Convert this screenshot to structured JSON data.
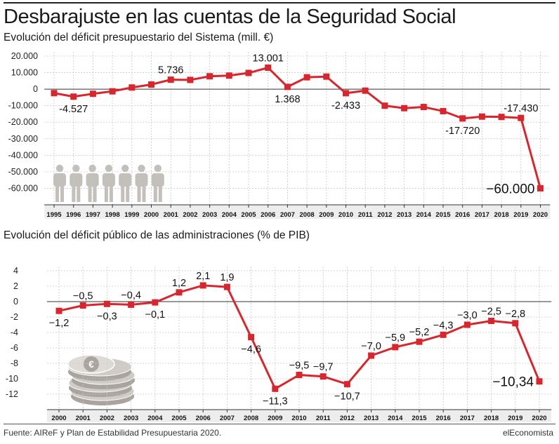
{
  "header": {
    "title": "Desbarajuste en las cuentas de la Seguridad Social"
  },
  "footer": {
    "source": "Fuente: AIReF y Plan de Estabilidad Presupuestaria 2020.",
    "brand": "elEconomista"
  },
  "colors": {
    "series": "#d7262d",
    "grid": "#c8c8c8",
    "axis_band": "#ededed",
    "icons": "#c3c0bc"
  },
  "decorations": {
    "chart1_icon": "people-icons",
    "chart2_icon": "coin-stack-icon"
  },
  "chart_data": [
    {
      "type": "line",
      "title": "Evolución del déficit presupuestario del Sistema (mill. €)",
      "xlabel": "",
      "ylabel": "",
      "x": [
        "1995",
        "1996",
        "1997",
        "1998",
        "1999",
        "2000",
        "2001",
        "2002",
        "2003",
        "2004",
        "2005",
        "2006",
        "2007",
        "2008",
        "2009",
        "2010",
        "2011",
        "2012",
        "2013",
        "2014",
        "2015",
        "2016",
        "2017",
        "2018",
        "2019",
        "2020"
      ],
      "values": [
        -2400,
        -4527,
        -2800,
        -1300,
        1000,
        2800,
        5736,
        5600,
        7800,
        8200,
        9800,
        13001,
        1368,
        7200,
        7600,
        -2433,
        -900,
        -10000,
        -11500,
        -10800,
        -13300,
        -17720,
        -16600,
        -16800,
        -17430,
        -60000
      ],
      "ylim": [
        -70000,
        20000
      ],
      "yticks": [
        20000,
        10000,
        0,
        -10000,
        -20000,
        -30000,
        -40000,
        -50000,
        -60000
      ],
      "ytick_labels": [
        "20.000",
        "10.000",
        "0",
        "-10.000",
        "-20.000",
        "-30.000",
        "-40.000",
        "-50.000",
        "-60.000"
      ],
      "grid": true,
      "data_labels": [
        {
          "index": 1,
          "text": "-4.527",
          "pos": "below"
        },
        {
          "index": 6,
          "text": "5.736",
          "pos": "above"
        },
        {
          "index": 11,
          "text": "13.001",
          "pos": "above"
        },
        {
          "index": 12,
          "text": "1.368",
          "pos": "below"
        },
        {
          "index": 15,
          "text": "-2.433",
          "pos": "below"
        },
        {
          "index": 21,
          "text": "-17.720",
          "pos": "below"
        },
        {
          "index": 24,
          "text": "-17.430",
          "pos": "above"
        },
        {
          "index": 25,
          "text": "−60.000",
          "pos": "left",
          "emphasis": true
        }
      ]
    },
    {
      "type": "line",
      "title": "Evolución del déficit público de las administraciones (% de PIB)",
      "xlabel": "",
      "ylabel": "",
      "x": [
        "2000",
        "2001",
        "2002",
        "2003",
        "2004",
        "2005",
        "2006",
        "2007",
        "2008",
        "2009",
        "2010",
        "2011",
        "2012",
        "2013",
        "2014",
        "2015",
        "2016",
        "2017",
        "2018",
        "2019",
        "2020"
      ],
      "values": [
        -1.2,
        -0.5,
        -0.3,
        -0.4,
        -0.1,
        1.2,
        2.1,
        1.9,
        -4.6,
        -11.3,
        -9.5,
        -9.7,
        -10.7,
        -7.0,
        -5.9,
        -5.2,
        -4.3,
        -3.0,
        -2.5,
        -2.8,
        -10.34
      ],
      "ylim": [
        -14,
        4
      ],
      "yticks": [
        4,
        2,
        0,
        -2,
        -4,
        -6,
        -8,
        -10,
        -12
      ],
      "ytick_labels": [
        "4",
        "2",
        "0",
        "-2",
        "-4",
        "-6",
        "-8",
        "-10",
        "-12"
      ],
      "grid": true,
      "data_labels": [
        {
          "index": 0,
          "text": "−1,2",
          "pos": "below"
        },
        {
          "index": 1,
          "text": "−0,5",
          "pos": "above"
        },
        {
          "index": 2,
          "text": "−0,3",
          "pos": "below"
        },
        {
          "index": 3,
          "text": "−0,4",
          "pos": "above"
        },
        {
          "index": 4,
          "text": "−0,1",
          "pos": "below"
        },
        {
          "index": 5,
          "text": "1,2",
          "pos": "above"
        },
        {
          "index": 6,
          "text": "2,1",
          "pos": "above"
        },
        {
          "index": 7,
          "text": "1,9",
          "pos": "above"
        },
        {
          "index": 8,
          "text": "−4,6",
          "pos": "below"
        },
        {
          "index": 9,
          "text": "−11,3",
          "pos": "below"
        },
        {
          "index": 10,
          "text": "−9,5",
          "pos": "above"
        },
        {
          "index": 11,
          "text": "−9,7",
          "pos": "above"
        },
        {
          "index": 12,
          "text": "−10,7",
          "pos": "below"
        },
        {
          "index": 13,
          "text": "−7,0",
          "pos": "above"
        },
        {
          "index": 14,
          "text": "−5,9",
          "pos": "above"
        },
        {
          "index": 15,
          "text": "−5,2",
          "pos": "above"
        },
        {
          "index": 16,
          "text": "−4,3",
          "pos": "above"
        },
        {
          "index": 17,
          "text": "−3,0",
          "pos": "above"
        },
        {
          "index": 18,
          "text": "−2,5",
          "pos": "above"
        },
        {
          "index": 19,
          "text": "−2,8",
          "pos": "above"
        },
        {
          "index": 20,
          "text": "−10,34",
          "pos": "left",
          "emphasis": true
        }
      ]
    }
  ]
}
